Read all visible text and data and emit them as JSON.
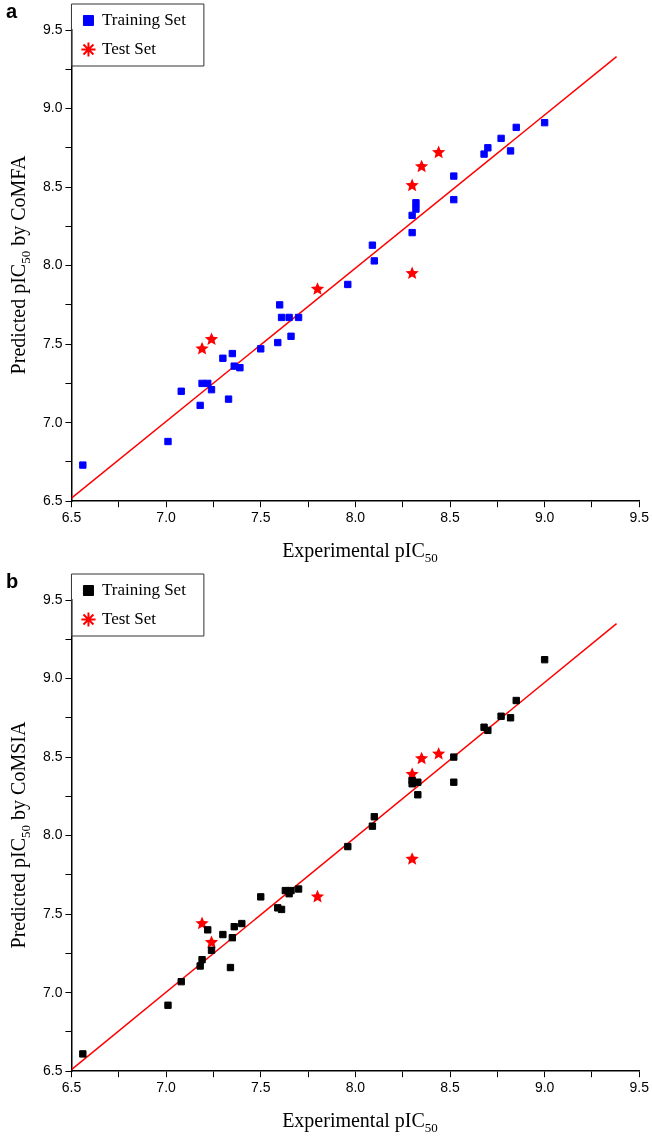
{
  "chart_data": [
    {
      "type": "scatter",
      "title": "a",
      "xlabel": "Experimental pIC$_{50}$",
      "ylabel": "Predicted pIC$_{50}$ by CoMFA",
      "legend": "top left",
      "xlim": [
        6.5,
        9.5
      ],
      "ylim": [
        6.5,
        9.5
      ],
      "xticks": [
        6.5,
        {
          "value": 6.75,
          "label": null
        },
        {
          "value": 7,
          "label": "7.0"
        },
        {
          "value": 7.25,
          "label": null
        },
        7.5,
        {
          "value": 7.75,
          "label": null
        },
        {
          "value": 8,
          "label": "8.0"
        },
        {
          "value": 8.25,
          "label": null
        },
        8.5,
        {
          "value": 8.75,
          "label": null
        },
        {
          "value": 9,
          "label": "9.0"
        },
        {
          "value": 9.25,
          "label": null
        },
        9.5
      ],
      "yticks": [
        6.5,
        {
          "value": 6.75,
          "label": null
        },
        {
          "value": 7,
          "label": "7.0"
        },
        {
          "value": 7.25,
          "label": null
        },
        7.5,
        {
          "value": 7.75,
          "label": null
        },
        {
          "value": 8,
          "label": "8.0"
        },
        {
          "value": 8.25,
          "label": null
        },
        8.5,
        {
          "value": 8.75,
          "label": null
        },
        {
          "value": 9,
          "label": "9.0"
        },
        {
          "value": 9.25,
          "label": null
        },
        9.5
      ],
      "series": [
        {
          "name": "Training Set",
          "color": "#0000ff",
          "marker": "square",
          "x": [
            6.56,
            7.01,
            7.08,
            7.18,
            7.19,
            7.22,
            7.24,
            7.3,
            7.33,
            7.35,
            7.36,
            7.39,
            7.5,
            7.59,
            7.6,
            7.61,
            7.65,
            7.66,
            7.7,
            7.96,
            8.09,
            8.1,
            8.3,
            8.3,
            8.32,
            8.32,
            8.52,
            8.52,
            8.68,
            8.7,
            8.77,
            8.82,
            8.85,
            9.0
          ],
          "values": [
            6.73,
            6.88,
            7.2,
            7.11,
            7.25,
            7.25,
            7.21,
            7.41,
            7.15,
            7.44,
            7.36,
            7.35,
            7.47,
            7.51,
            7.75,
            7.67,
            7.67,
            7.55,
            7.67,
            7.88,
            8.13,
            8.03,
            8.21,
            8.32,
            8.36,
            8.4,
            8.42,
            8.57,
            8.71,
            8.75,
            8.81,
            8.73,
            8.88,
            8.91
          ]
        },
        {
          "name": "Test Set",
          "color": "#ff0000",
          "marker": "star",
          "x": [
            7.19,
            7.24,
            7.8,
            8.3,
            8.3,
            8.35,
            8.44
          ],
          "values": [
            7.47,
            7.53,
            7.85,
            8.51,
            7.95,
            8.63,
            8.72
          ]
        },
        {
          "type": "line",
          "color": "#ff0000",
          "marker": "none",
          "x": [
            6.5,
            9.38
          ],
          "values": [
            6.52,
            9.33
          ]
        }
      ]
    },
    {
      "type": "scatter",
      "title": "b",
      "xlabel": "Experimental pIC$_{50}$",
      "ylabel": "Predicted pIC$_{50}$ by CoMSIA",
      "legend": "top left",
      "xlim": [
        6.5,
        9.5
      ],
      "ylim": [
        6.5,
        9.5
      ],
      "xticks": [
        6.5,
        {
          "value": 6.75,
          "label": null
        },
        {
          "value": 7,
          "label": "7.0"
        },
        {
          "value": 7.25,
          "label": null
        },
        7.5,
        {
          "value": 7.75,
          "label": null
        },
        {
          "value": 8,
          "label": "8.0"
        },
        {
          "value": 8.25,
          "label": null
        },
        8.5,
        {
          "value": 8.75,
          "label": null
        },
        {
          "value": 9,
          "label": "9.0"
        },
        {
          "value": 9.25,
          "label": null
        },
        9.5
      ],
      "yticks": [
        6.5,
        {
          "value": 6.75,
          "label": null
        },
        {
          "value": 7,
          "label": "7.0"
        },
        {
          "value": 7.25,
          "label": null
        },
        7.5,
        {
          "value": 7.75,
          "label": null
        },
        {
          "value": 8,
          "label": "8.0"
        },
        {
          "value": 8.25,
          "label": null
        },
        8.5,
        {
          "value": 8.75,
          "label": null
        },
        {
          "value": 9,
          "label": "9.0"
        },
        {
          "value": 9.25,
          "label": null
        },
        9.5
      ],
      "series": [
        {
          "name": "Training Set",
          "color": "#000000",
          "marker": "square",
          "x": [
            6.56,
            7.01,
            7.08,
            7.18,
            7.19,
            7.22,
            7.24,
            7.3,
            7.34,
            7.35,
            7.36,
            7.4,
            7.5,
            7.59,
            7.61,
            7.63,
            7.65,
            7.66,
            7.7,
            7.96,
            8.09,
            8.1,
            8.3,
            8.3,
            8.33,
            8.33,
            8.52,
            8.52,
            8.68,
            8.7,
            8.77,
            8.82,
            8.85,
            9.0
          ],
          "values": [
            6.61,
            6.92,
            7.07,
            7.17,
            7.21,
            7.4,
            7.27,
            7.37,
            7.16,
            7.35,
            7.42,
            7.44,
            7.61,
            7.54,
            7.53,
            7.65,
            7.63,
            7.65,
            7.66,
            7.93,
            8.06,
            8.12,
            8.33,
            8.35,
            8.34,
            8.26,
            8.34,
            8.5,
            8.69,
            8.67,
            8.76,
            8.75,
            8.86,
            9.12
          ]
        },
        {
          "name": "Test Set",
          "color": "#ff0000",
          "marker": "star",
          "x": [
            7.19,
            7.24,
            7.8,
            8.3,
            8.3,
            8.35,
            8.44
          ],
          "values": [
            7.44,
            7.32,
            7.61,
            8.39,
            7.85,
            8.49,
            8.52
          ]
        },
        {
          "type": "line",
          "color": "#ff0000",
          "marker": "none",
          "x": [
            6.5,
            9.38
          ],
          "values": [
            6.51,
            9.35
          ]
        }
      ]
    }
  ]
}
